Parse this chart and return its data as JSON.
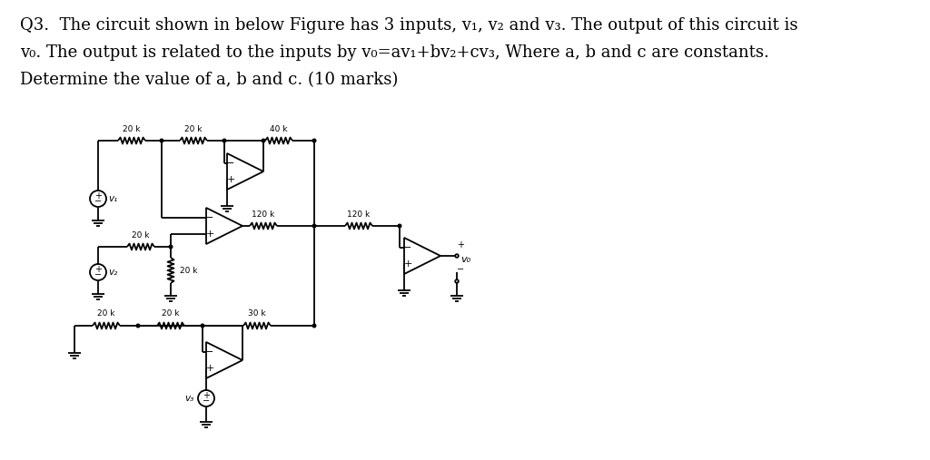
{
  "bg_color": "#ffffff",
  "text_color": "#000000",
  "figsize": [
    10.24,
    5.07
  ],
  "dpi": 100,
  "font_size_title": 13.0,
  "title_lines": [
    "Q3.  The circuit shown in below Figure has 3 inputs, v₁, v₂ and v₃. The output of this circuit is",
    "v₀. The output is related to the inputs by v₀=av₁+bv₂+cv₃, Where a, b and c are constants.",
    "Determine the value of a, b and c. (10 marks)"
  ]
}
